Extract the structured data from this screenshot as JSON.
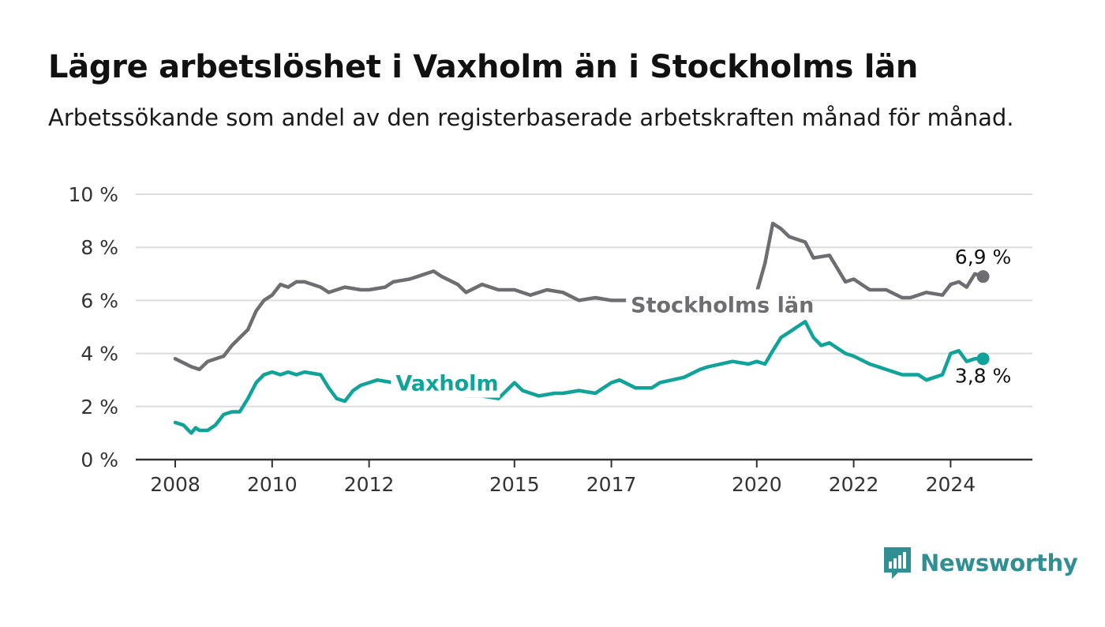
{
  "title": "Lägre arbetslöshet i Vaxholm än i Stockholms län",
  "subtitle": "Arbetssökande som andel av den registerbaserade arbetskraften månad för månad.",
  "brand": {
    "name": "Newsworthy",
    "icon": "bar-chart-speech-bubble-icon",
    "color": "#2f8f92"
  },
  "colors": {
    "stockholm": "#6e6d72",
    "vaxholm": "#0fa39a",
    "grid": "#dcdcdc",
    "axis": "#333333"
  },
  "chart_data": {
    "type": "line",
    "ylim": [
      0,
      10
    ],
    "xlim": [
      2008,
      2026.5
    ],
    "y_ticks": [
      {
        "value": 0,
        "label": "0 %"
      },
      {
        "value": 2,
        "label": "2 %"
      },
      {
        "value": 4,
        "label": "4 %"
      },
      {
        "value": 6,
        "label": "6 %"
      },
      {
        "value": 8,
        "label": "8 %"
      },
      {
        "value": 10,
        "label": "10 %"
      }
    ],
    "x_ticks": [
      {
        "value": 2008,
        "label": "2008"
      },
      {
        "value": 2010,
        "label": "2010"
      },
      {
        "value": 2012,
        "label": "2012"
      },
      {
        "value": 2015,
        "label": "2015"
      },
      {
        "value": 2017,
        "label": "2017"
      },
      {
        "value": 2020,
        "label": "2020"
      },
      {
        "value": 2022,
        "label": "2022"
      },
      {
        "value": 2024,
        "label": "2024"
      }
    ],
    "grid": true,
    "series": [
      {
        "name": "Stockholms län",
        "end_label": "6,9 %",
        "x": [
          2008.0,
          2008.33,
          2008.5,
          2008.67,
          2009.0,
          2009.17,
          2009.5,
          2009.67,
          2009.83,
          2010.0,
          2010.17,
          2010.33,
          2010.5,
          2010.67,
          2011.0,
          2011.17,
          2011.5,
          2011.83,
          2012.0,
          2012.33,
          2012.5,
          2012.83,
          2013.0,
          2013.33,
          2013.5,
          2013.83,
          2014.0,
          2014.33,
          2014.67,
          2015.0,
          2015.33,
          2015.67,
          2016.0,
          2016.33,
          2016.67,
          2017.0,
          2017.5,
          2018.0,
          2018.5,
          2019.0,
          2019.5,
          2020.0,
          2020.17,
          2020.33,
          2020.5,
          2020.67,
          2021.0,
          2021.17,
          2021.5,
          2021.83,
          2022.0,
          2022.33,
          2022.67,
          2023.0,
          2023.17,
          2023.5,
          2023.83,
          2024.0,
          2024.17,
          2024.33,
          2024.5,
          2024.67
        ],
        "values": [
          3.8,
          3.5,
          3.4,
          3.7,
          3.9,
          4.3,
          4.9,
          5.6,
          6.0,
          6.2,
          6.6,
          6.5,
          6.7,
          6.7,
          6.5,
          6.3,
          6.5,
          6.4,
          6.4,
          6.5,
          6.7,
          6.8,
          6.9,
          7.1,
          6.9,
          6.6,
          6.3,
          6.6,
          6.4,
          6.4,
          6.2,
          6.4,
          6.3,
          6.0,
          6.1,
          6.0,
          6.0,
          6.0,
          6.0,
          5.9,
          6.0,
          6.3,
          7.4,
          8.9,
          8.7,
          8.4,
          8.2,
          7.6,
          7.7,
          6.7,
          6.8,
          6.4,
          6.4,
          6.1,
          6.1,
          6.3,
          6.2,
          6.6,
          6.7,
          6.5,
          7.0,
          6.9
        ]
      },
      {
        "name": "Vaxholm",
        "end_label": "3,8 %",
        "x": [
          2008.0,
          2008.17,
          2008.33,
          2008.42,
          2008.5,
          2008.67,
          2008.83,
          2009.0,
          2009.17,
          2009.33,
          2009.5,
          2009.67,
          2009.83,
          2010.0,
          2010.17,
          2010.33,
          2010.5,
          2010.67,
          2011.0,
          2011.17,
          2011.33,
          2011.5,
          2011.67,
          2011.83,
          2012.0,
          2012.17,
          2012.5,
          2012.83,
          2013.0,
          2013.5,
          2013.83,
          2014.0,
          2014.33,
          2014.67,
          2015.0,
          2015.17,
          2015.5,
          2015.83,
          2016.0,
          2016.33,
          2016.67,
          2017.0,
          2017.17,
          2017.5,
          2017.83,
          2018.0,
          2018.5,
          2018.83,
          2019.0,
          2019.5,
          2019.83,
          2020.0,
          2020.17,
          2020.33,
          2020.5,
          2020.67,
          2020.83,
          2021.0,
          2021.17,
          2021.33,
          2021.5,
          2021.83,
          2022.0,
          2022.33,
          2022.5,
          2022.83,
          2023.0,
          2023.33,
          2023.5,
          2023.67,
          2023.83,
          2024.0,
          2024.17,
          2024.33,
          2024.5,
          2024.67
        ],
        "values": [
          1.4,
          1.3,
          1.0,
          1.2,
          1.1,
          1.1,
          1.3,
          1.7,
          1.8,
          1.8,
          2.3,
          2.9,
          3.2,
          3.3,
          3.2,
          3.3,
          3.2,
          3.3,
          3.2,
          2.7,
          2.3,
          2.2,
          2.6,
          2.8,
          2.9,
          3.0,
          2.9,
          2.9,
          2.7,
          2.5,
          2.5,
          2.4,
          2.4,
          2.3,
          2.9,
          2.6,
          2.4,
          2.5,
          2.5,
          2.6,
          2.5,
          2.9,
          3.0,
          2.7,
          2.7,
          2.9,
          3.1,
          3.4,
          3.5,
          3.7,
          3.6,
          3.7,
          3.6,
          4.1,
          4.6,
          4.8,
          5.0,
          5.2,
          4.6,
          4.3,
          4.4,
          4.0,
          3.9,
          3.6,
          3.5,
          3.3,
          3.2,
          3.2,
          3.0,
          3.1,
          3.2,
          4.0,
          4.1,
          3.7,
          3.8,
          3.8
        ]
      }
    ]
  }
}
